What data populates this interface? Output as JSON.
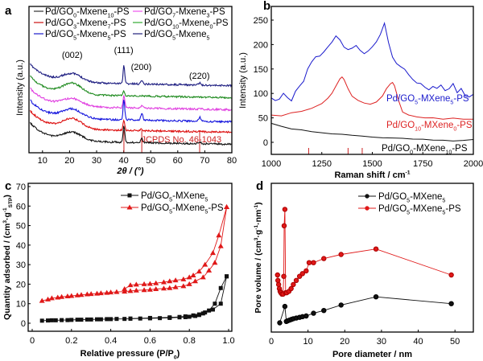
{
  "figure": {
    "panel_labels": [
      "a",
      "b",
      "c",
      "d"
    ]
  },
  "chart_data": [
    {
      "panel": "a",
      "type": "line",
      "xlabel": "2θ / (°)",
      "ylabel": "Intensity (a.u.)",
      "xlim": [
        5,
        80
      ],
      "xticks": [
        10,
        20,
        30,
        40,
        50,
        60,
        70,
        80
      ],
      "yticks": [],
      "legend_position": "top",
      "legend": [
        {
          "name": "Pd/GO0-Mxene10-PS",
          "base": "Pd/GO",
          "sub1": "0",
          "mid": "-Mxene",
          "sub2": "10",
          "tail": "-PS",
          "color": "#333333"
        },
        {
          "name": "Pd/GO7-Mxene3-PS",
          "base": "Pd/GO",
          "sub1": "7",
          "mid": "-Mxene",
          "sub2": "3",
          "tail": "-PS",
          "color": "#ee55ee"
        },
        {
          "name": "Pd/GO3-Mxene7-PS",
          "base": "Pd/GO",
          "sub1": "3",
          "mid": "-Mxene",
          "sub2": "7",
          "tail": "-PS",
          "color": "#cc1111"
        },
        {
          "name": "Pd/GO10-Mxene0-PS",
          "base": "Pd/GO",
          "sub1": "10",
          "mid": "-Mxene",
          "sub2": "0",
          "tail": "-PS",
          "color": "#33aa33"
        },
        {
          "name": "Pd/GO5-Mxene5-PS",
          "base": "Pd/GO",
          "sub1": "5",
          "mid": "-Mxene",
          "sub2": "5",
          "tail": "-PS",
          "color": "#1a1acc"
        },
        {
          "name": "Pd/GO5-Mxene5",
          "base": "Pd/GO",
          "sub1": "5",
          "mid": "-Mxene",
          "sub2": "5",
          "tail": "",
          "color": "#22227a"
        }
      ],
      "series_order_top_to_bottom": [
        {
          "name": "Pd/GO5-Mxene5",
          "color": "#1c1c80",
          "offset": 5,
          "peaks": {
            "002": 1.0,
            "111": 1.6,
            "200": 0.5,
            "220": 0.3
          }
        },
        {
          "name": "Pd/GO10-Mxene0-PS",
          "color": "#1e8a1e",
          "offset": 4,
          "peaks": {
            "002": 1.3,
            "111": 0.4,
            "200": 0.0,
            "220": 0.0
          }
        },
        {
          "name": "Pd/GO7-Mxene3-PS",
          "color": "#e040e0",
          "offset": 3,
          "peaks": {
            "002": 0.9,
            "111": 1.1,
            "200": 0.3,
            "220": 0.2
          }
        },
        {
          "name": "Pd/GO5-Mxene5-PS",
          "color": "#1515dd",
          "offset": 2,
          "peaks": {
            "002": 1.1,
            "111": 1.8,
            "200": 0.9,
            "220": 0.6
          }
        },
        {
          "name": "Pd/GO3-Mxene7-PS",
          "color": "#dd1111",
          "offset": 1,
          "peaks": {
            "002": 1.2,
            "111": 0.9,
            "200": 0.2,
            "220": 0.1
          }
        },
        {
          "name": "Pd/GO0-Mxene10-PS",
          "color": "#111111",
          "offset": 0,
          "peaks": {
            "002": 1.0,
            "111": 1.5,
            "200": 0.5,
            "220": 0.3
          }
        }
      ],
      "annotations": [
        {
          "text": "(002)",
          "x": 21
        },
        {
          "text": "(111)",
          "x": 40
        },
        {
          "text": "(200)",
          "x": 46.5
        },
        {
          "text": "(220)",
          "x": 68
        }
      ],
      "reference": {
        "label": "JCPDS  No. 46-1043",
        "color": "#cc2222",
        "lines": [
          40.1,
          46.7,
          68.1
        ]
      }
    },
    {
      "panel": "b",
      "type": "line",
      "xlabel": "Raman shift / cm",
      "xlabel_sup": "-1",
      "ylabel": "Intensity (a.u.)",
      "xlim": [
        1000,
        2000
      ],
      "ylim": [
        -25,
        270
      ],
      "xticks": [
        1000,
        1250,
        1500,
        1750,
        2000
      ],
      "yticks": [
        0,
        50,
        100,
        150,
        200,
        250
      ],
      "series": [
        {
          "name": "Pd/GO5-MXene5-PS",
          "color": "#1a1acc",
          "label_base": "Pd/GO",
          "sub1": "5",
          "label_mid": "-MXene",
          "sub2": "5",
          "label_tail": "-PS",
          "x": [
            1000,
            1020,
            1040,
            1060,
            1080,
            1100,
            1120,
            1140,
            1160,
            1180,
            1200,
            1220,
            1240,
            1260,
            1280,
            1300,
            1320,
            1340,
            1360,
            1380,
            1400,
            1420,
            1440,
            1460,
            1480,
            1500,
            1520,
            1540,
            1560,
            1580,
            1600,
            1620,
            1640,
            1660,
            1680,
            1700,
            1720,
            1740,
            1760,
            1780,
            1800,
            1820,
            1840,
            1860,
            1880,
            1900,
            1920,
            1940,
            1960,
            1980,
            2000
          ],
          "y": [
            90,
            85,
            88,
            100,
            92,
            84,
            105,
            115,
            125,
            150,
            165,
            175,
            177,
            185,
            195,
            205,
            218,
            210,
            195,
            190,
            192,
            198,
            188,
            182,
            187,
            195,
            205,
            220,
            243,
            205,
            175,
            162,
            155,
            150,
            138,
            128,
            122,
            120,
            112,
            108,
            115,
            110,
            118,
            105,
            110,
            120,
            102,
            110,
            95,
            92,
            98
          ]
        },
        {
          "name": "Pd/GO10-MXene0-PS",
          "color": "#dd2222",
          "label_base": "Pd/GO",
          "sub1": "10",
          "label_mid": "-MXene",
          "sub2": "0",
          "label_tail": "-PS",
          "x": [
            1000,
            1050,
            1100,
            1150,
            1200,
            1250,
            1280,
            1300,
            1320,
            1340,
            1350,
            1360,
            1380,
            1400,
            1430,
            1460,
            1490,
            1520,
            1550,
            1570,
            1590,
            1600,
            1610,
            1630,
            1650,
            1680,
            1720,
            1760,
            1800,
            1850,
            1900,
            1950,
            2000
          ],
          "y": [
            55,
            55,
            60,
            63,
            70,
            80,
            90,
            100,
            115,
            130,
            134,
            128,
            110,
            95,
            85,
            80,
            78,
            83,
            95,
            110,
            120,
            122,
            115,
            85,
            62,
            55,
            52,
            50,
            50,
            48,
            50,
            48,
            48
          ]
        },
        {
          "name": "Pd/GO0-MXene10-PS",
          "color": "#111111",
          "label_base": "Pd/GO",
          "sub1": "0",
          "label_mid": "-MXene",
          "sub2": "10",
          "label_tail": "-PS",
          "x": [
            1000,
            1050,
            1100,
            1150,
            1200,
            1250,
            1300,
            1350,
            1400,
            1450,
            1500,
            1550,
            1600,
            1650,
            1700,
            1750,
            1800,
            1850,
            1900,
            1950,
            2000
          ],
          "y": [
            38,
            33,
            28,
            25,
            22,
            20,
            18,
            16,
            14,
            13,
            11,
            10,
            9,
            8,
            7,
            6,
            4,
            5,
            3,
            4,
            5
          ]
        }
      ],
      "reference_lines": {
        "color": "#cc2222",
        "x": [
          1185,
          1380,
          1450
        ]
      }
    },
    {
      "panel": "c",
      "type": "line",
      "xlabel": "Relative pressure (P/P0)",
      "ylabel": "Quantity adsorbed / (cm3·g-1 STP)",
      "xlim": [
        0,
        1.0
      ],
      "ylim": [
        -5,
        70
      ],
      "xticks": [
        0,
        0.2,
        0.4,
        0.6,
        0.8,
        1.0
      ],
      "xtick_labels": [
        "0",
        "0.2",
        "0.4",
        "0.6",
        "0.8",
        "1.0"
      ],
      "yticks": [
        0,
        10,
        20,
        30,
        40,
        50,
        60,
        70
      ],
      "legend_position": "top-right",
      "series": [
        {
          "name": "Pd/GO5-MXene5",
          "marker": "square",
          "color": "#111111",
          "adsorption": {
            "x": [
              0.05,
              0.08,
              0.1,
              0.12,
              0.15,
              0.18,
              0.2,
              0.23,
              0.25,
              0.28,
              0.3,
              0.33,
              0.35,
              0.38,
              0.4,
              0.43,
              0.47,
              0.5,
              0.55,
              0.6,
              0.65,
              0.7,
              0.75,
              0.78,
              0.8,
              0.83,
              0.85,
              0.87,
              0.9,
              0.93,
              0.96,
              0.99
            ],
            "y": [
              1.3,
              1.4,
              1.5,
              1.5,
              1.6,
              1.6,
              1.7,
              1.8,
              1.8,
              1.9,
              1.9,
              2.0,
              2.0,
              2.1,
              2.1,
              2.2,
              2.2,
              2.3,
              2.4,
              2.5,
              2.6,
              2.7,
              3.0,
              3.1,
              3.3,
              3.7,
              4.2,
              5.0,
              6.5,
              10,
              18,
              24
            ]
          },
          "desorption": {
            "x": [
              0.99,
              0.96,
              0.92,
              0.88,
              0.85,
              0.82,
              0.78,
              0.75,
              0.7,
              0.6,
              0.5
            ],
            "y": [
              24,
              10,
              7,
              5.5,
              4.5,
              4.0,
              3.5,
              3.2,
              3.0,
              2.7,
              2.4
            ]
          }
        },
        {
          "name": "Pd/GO5-MXene5-PS",
          "marker": "triangle",
          "color": "#e01818",
          "adsorption": {
            "x": [
              0.05,
              0.08,
              0.1,
              0.13,
              0.15,
              0.18,
              0.2,
              0.23,
              0.25,
              0.28,
              0.3,
              0.33,
              0.35,
              0.38,
              0.4,
              0.43,
              0.47,
              0.5,
              0.53,
              0.57,
              0.6,
              0.63,
              0.67,
              0.7,
              0.73,
              0.77,
              0.8,
              0.83,
              0.87,
              0.9,
              0.93,
              0.96,
              0.99
            ],
            "y": [
              11.5,
              12.2,
              12.8,
              13.2,
              13.5,
              13.8,
              14.0,
              14.3,
              14.5,
              14.8,
              15.0,
              15.2,
              15.4,
              15.6,
              15.8,
              16.0,
              16.2,
              16.5,
              16.8,
              17.0,
              17.2,
              17.5,
              17.8,
              18.0,
              18.5,
              19.0,
              20,
              21.5,
              23.5,
              27,
              31,
              39.5,
              59.5
            ]
          },
          "desorption": {
            "x": [
              0.99,
              0.95,
              0.92,
              0.88,
              0.85,
              0.82,
              0.8,
              0.77,
              0.73,
              0.7,
              0.67,
              0.63,
              0.6,
              0.57,
              0.53,
              0.5,
              0.47
            ],
            "y": [
              59.5,
              45,
              36,
              30,
              26.5,
              24.5,
              23.5,
              22.5,
              22.0,
              21.5,
              21.0,
              20.5,
              20.2,
              20.0,
              19.8,
              19.5,
              17.5
            ]
          }
        }
      ]
    },
    {
      "panel": "d",
      "type": "line",
      "xlabel": "Pore diameter / nm",
      "ylabel": "Pore volume / (cm3·g-1·nm-1)",
      "xlim": [
        0,
        55
      ],
      "ylim": [
        0,
        1
      ],
      "xticks": [
        0,
        10,
        20,
        30,
        40,
        50
      ],
      "yticks": [],
      "legend_position": "top-right",
      "series": [
        {
          "name": "Pd/GO5-MXene5",
          "marker": "circle",
          "color": "#111111",
          "x": [
            2.3,
            3.7,
            4.1,
            4.5,
            5.0,
            5.5,
            6.0,
            6.8,
            7.7,
            8.5,
            9.5,
            11.5,
            14.3,
            19.0,
            28.5,
            49.0
          ],
          "y": [
            0.05,
            0.17,
            0.06,
            0.065,
            0.07,
            0.075,
            0.08,
            0.085,
            0.09,
            0.095,
            0.1,
            0.12,
            0.14,
            0.18,
            0.24,
            0.19
          ]
        },
        {
          "name": "Pd/GO5-MXene5-PS",
          "marker": "circle",
          "color": "#e01818",
          "x": [
            1.7,
            1.8,
            2.0,
            2.2,
            2.4,
            2.6,
            2.9,
            3.2,
            3.4,
            3.5,
            3.7,
            3.9,
            4.2,
            4.8,
            5.4,
            6.0,
            6.8,
            7.7,
            8.5,
            9.5,
            10.3,
            11.5,
            14.3,
            19.0,
            28.5,
            49.0
          ],
          "y": [
            0.4,
            0.36,
            0.33,
            0.3,
            0.28,
            0.27,
            0.26,
            0.26,
            0.39,
            0.76,
            0.88,
            0.27,
            0.27,
            0.28,
            0.3,
            0.33,
            0.36,
            0.39,
            0.41,
            0.43,
            0.49,
            0.49,
            0.52,
            0.55,
            0.59,
            0.4
          ]
        }
      ]
    }
  ]
}
